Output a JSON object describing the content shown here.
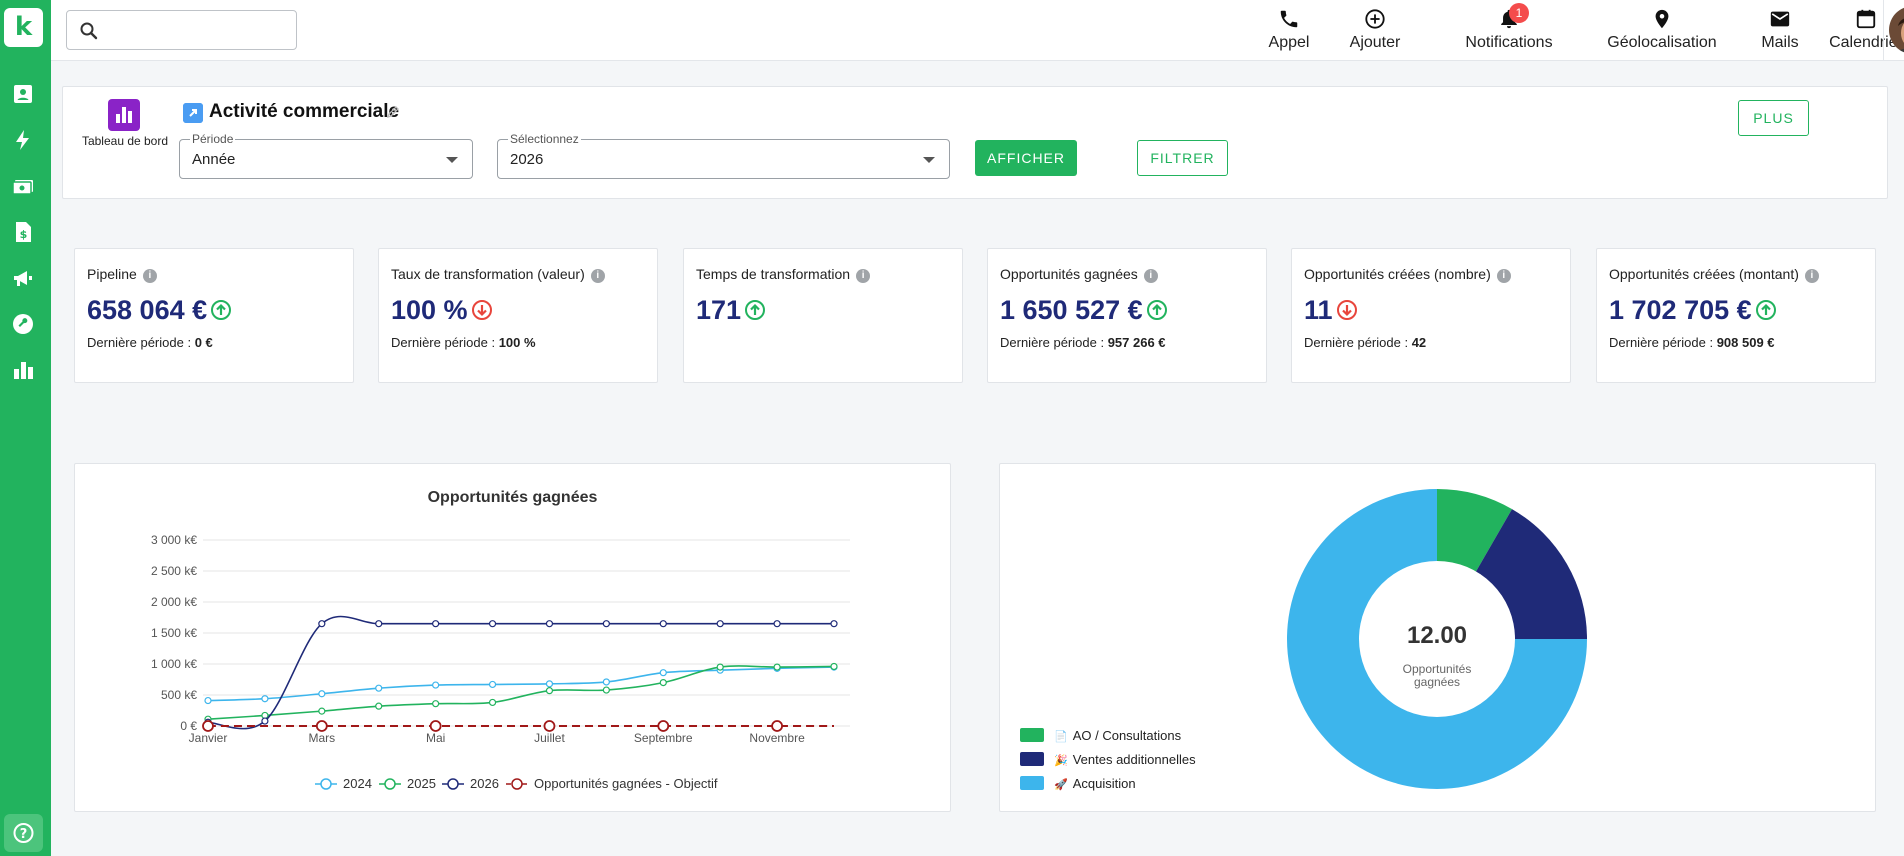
{
  "sidebar": {
    "logo_letter": "k",
    "icons": [
      "contacts-icon",
      "lightning-icon",
      "money-icon",
      "invoice-icon",
      "megaphone-icon",
      "wrench-icon",
      "bar-chart-icon"
    ],
    "help_icon": "help-icon"
  },
  "topbar": {
    "search_placeholder": "",
    "nav": [
      {
        "label": "Appel",
        "icon": "phone-icon"
      },
      {
        "label": "Ajouter",
        "icon": "add-circle-icon"
      },
      {
        "label": "Notifications",
        "icon": "bell-icon",
        "badge": "1"
      },
      {
        "label": "Géolocalisation",
        "icon": "location-pin-icon"
      },
      {
        "label": "Mails",
        "icon": "mail-icon"
      },
      {
        "label": "Calendrier",
        "icon": "calendar-icon"
      }
    ]
  },
  "header": {
    "dashboard_label": "Tableau de bord",
    "title": "Activité commerciale",
    "period_label": "Période",
    "period_value": "Année",
    "select_label": "Sélectionnez",
    "select_value": "2026",
    "show_button": "AFFICHER",
    "filter_button": "FILTRER",
    "more_button": "PLUS"
  },
  "colors": {
    "brand": "#22b35e",
    "navy": "#1f2a78",
    "light_blue": "#3db5ec",
    "dark_red": "#a01818",
    "up": "#22b35e",
    "down": "#e8453c"
  },
  "kpis": [
    {
      "label": "Pipeline",
      "value": "658 064 €",
      "trend": "up",
      "prev_label": "Dernière période :",
      "prev_value": "0 €"
    },
    {
      "label": "Taux de transformation (valeur)",
      "value": "100 %",
      "trend": "down",
      "prev_label": "Dernière période :",
      "prev_value": "100 %"
    },
    {
      "label": "Temps de transformation",
      "value": "171",
      "trend": "up",
      "prev_label": "",
      "prev_value": ""
    },
    {
      "label": "Opportunités gagnées",
      "value": "1 650 527 €",
      "trend": "up",
      "prev_label": "Dernière période :",
      "prev_value": "957 266 €"
    },
    {
      "label": "Opportunités créées (nombre)",
      "value": "11",
      "trend": "down",
      "prev_label": "Dernière période :",
      "prev_value": "42"
    },
    {
      "label": "Opportunités créées (montant)",
      "value": "1 702 705 €",
      "trend": "up",
      "prev_label": "Dernière période :",
      "prev_value": "908 509 €"
    }
  ],
  "chart_data": [
    {
      "type": "line",
      "title": "Opportunités gagnées",
      "xlabel": "",
      "ylabel": "",
      "x_labels": [
        "Janvier",
        "",
        "Mars",
        "",
        "Mai",
        "",
        "Juillet",
        "",
        "Septembre",
        "",
        "Novembre",
        ""
      ],
      "y_ticks": [
        "0 €",
        "500 k€",
        "1 000 k€",
        "1 500 k€",
        "2 000 k€",
        "2 500 k€",
        "3 000 k€"
      ],
      "ylim": [
        0,
        3000
      ],
      "legend_position": "bottom",
      "grid": true,
      "series": [
        {
          "name": "2024",
          "color": "#3db5ec",
          "dashed": false,
          "values": [
            410,
            440,
            520,
            610,
            660,
            670,
            680,
            710,
            860,
            900,
            930,
            950
          ]
        },
        {
          "name": "2025",
          "color": "#22b35e",
          "dashed": false,
          "values": [
            110,
            170,
            240,
            320,
            360,
            380,
            570,
            580,
            700,
            950,
            950,
            960
          ]
        },
        {
          "name": "2026",
          "color": "#1f2a78",
          "dashed": false,
          "values": [
            60,
            80,
            1650,
            1650,
            1650,
            1650,
            1650,
            1650,
            1650,
            1650,
            1650,
            1650
          ]
        },
        {
          "name": "Opportunités gagnées - Objectif",
          "color": "#a01818",
          "dashed": true,
          "values": [
            0,
            0,
            0,
            0,
            0,
            0,
            0,
            0,
            0,
            0,
            0,
            0
          ]
        }
      ]
    },
    {
      "type": "pie",
      "title": "",
      "center_value": "12.00",
      "center_label": [
        "Opportunités",
        "gagnées"
      ],
      "legend_position": "bottom-left",
      "slices": [
        {
          "name": "AO / Consultations",
          "value": 1,
          "color": "#22b35e",
          "emoji": "📄"
        },
        {
          "name": "Ventes additionnelles",
          "value": 2,
          "color": "#1f2a78",
          "emoji": "🎉"
        },
        {
          "name": "Acquisition",
          "value": 9,
          "color": "#3db5ec",
          "emoji": "🚀"
        }
      ]
    }
  ]
}
